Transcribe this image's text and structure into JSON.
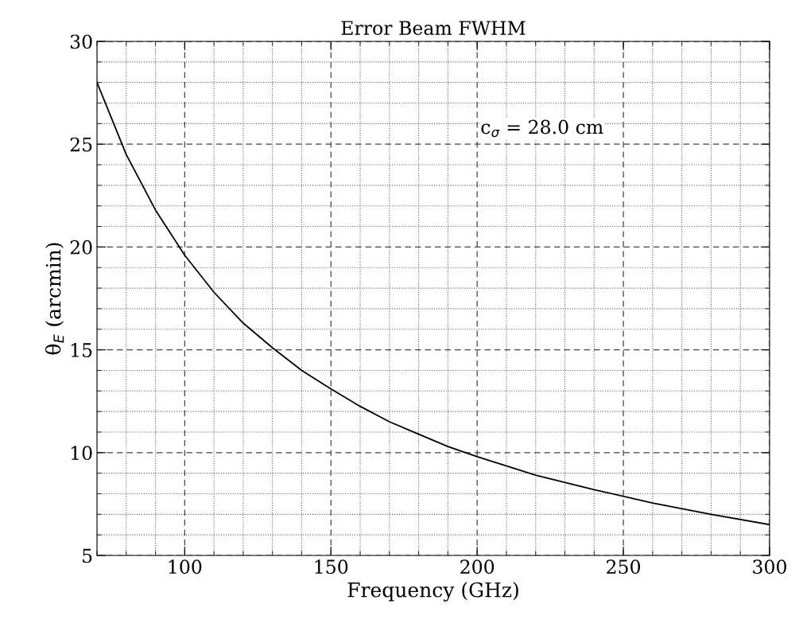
{
  "chart_data": {
    "type": "line",
    "title": "Error Beam FWHM",
    "xlabel": "Frequency (GHz)",
    "ylabel": "θ$_{E}$ (arcmin)",
    "annotations": [
      "c$_{σ}$ = 28.0 cm"
    ],
    "x": [
      70,
      80,
      90,
      100,
      110,
      120,
      130,
      140,
      150,
      160,
      170,
      180,
      190,
      200,
      220,
      240,
      260,
      280,
      300
    ],
    "series": [
      {
        "color": "#000000",
        "values": [
          28.0,
          24.5,
          21.8,
          19.6,
          17.8,
          16.3,
          15.1,
          14.0,
          13.1,
          12.25,
          11.5,
          10.9,
          10.3,
          9.8,
          8.9,
          8.2,
          7.55,
          7.0,
          6.5
        ]
      }
    ],
    "xlim": [
      70,
      300
    ],
    "xticks": [
      100,
      150,
      200,
      250,
      300
    ],
    "ylim": [
      5,
      30
    ],
    "yticks": [
      5,
      10,
      15,
      20,
      25,
      30
    ],
    "grid": true,
    "marker": "none",
    "line_style": "solid"
  }
}
